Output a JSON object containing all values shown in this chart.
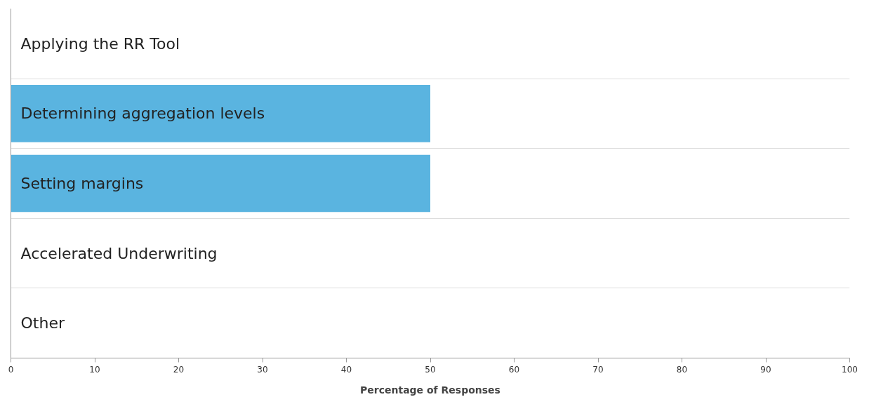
{
  "chart_data": {
    "type": "bar",
    "orientation": "horizontal",
    "xlabel": "Percentage of Responses",
    "categories": [
      "Applying the RR Tool",
      "Determining aggregation levels",
      "Setting margins",
      "Accelerated Underwriting",
      "Other"
    ],
    "values": [
      0,
      50,
      50,
      0,
      0
    ],
    "color": "#5ab4e0",
    "xlim": [
      0,
      100
    ],
    "xticks": [
      0,
      10,
      20,
      30,
      40,
      50,
      60,
      70,
      80,
      90,
      100
    ],
    "grid": "y"
  }
}
